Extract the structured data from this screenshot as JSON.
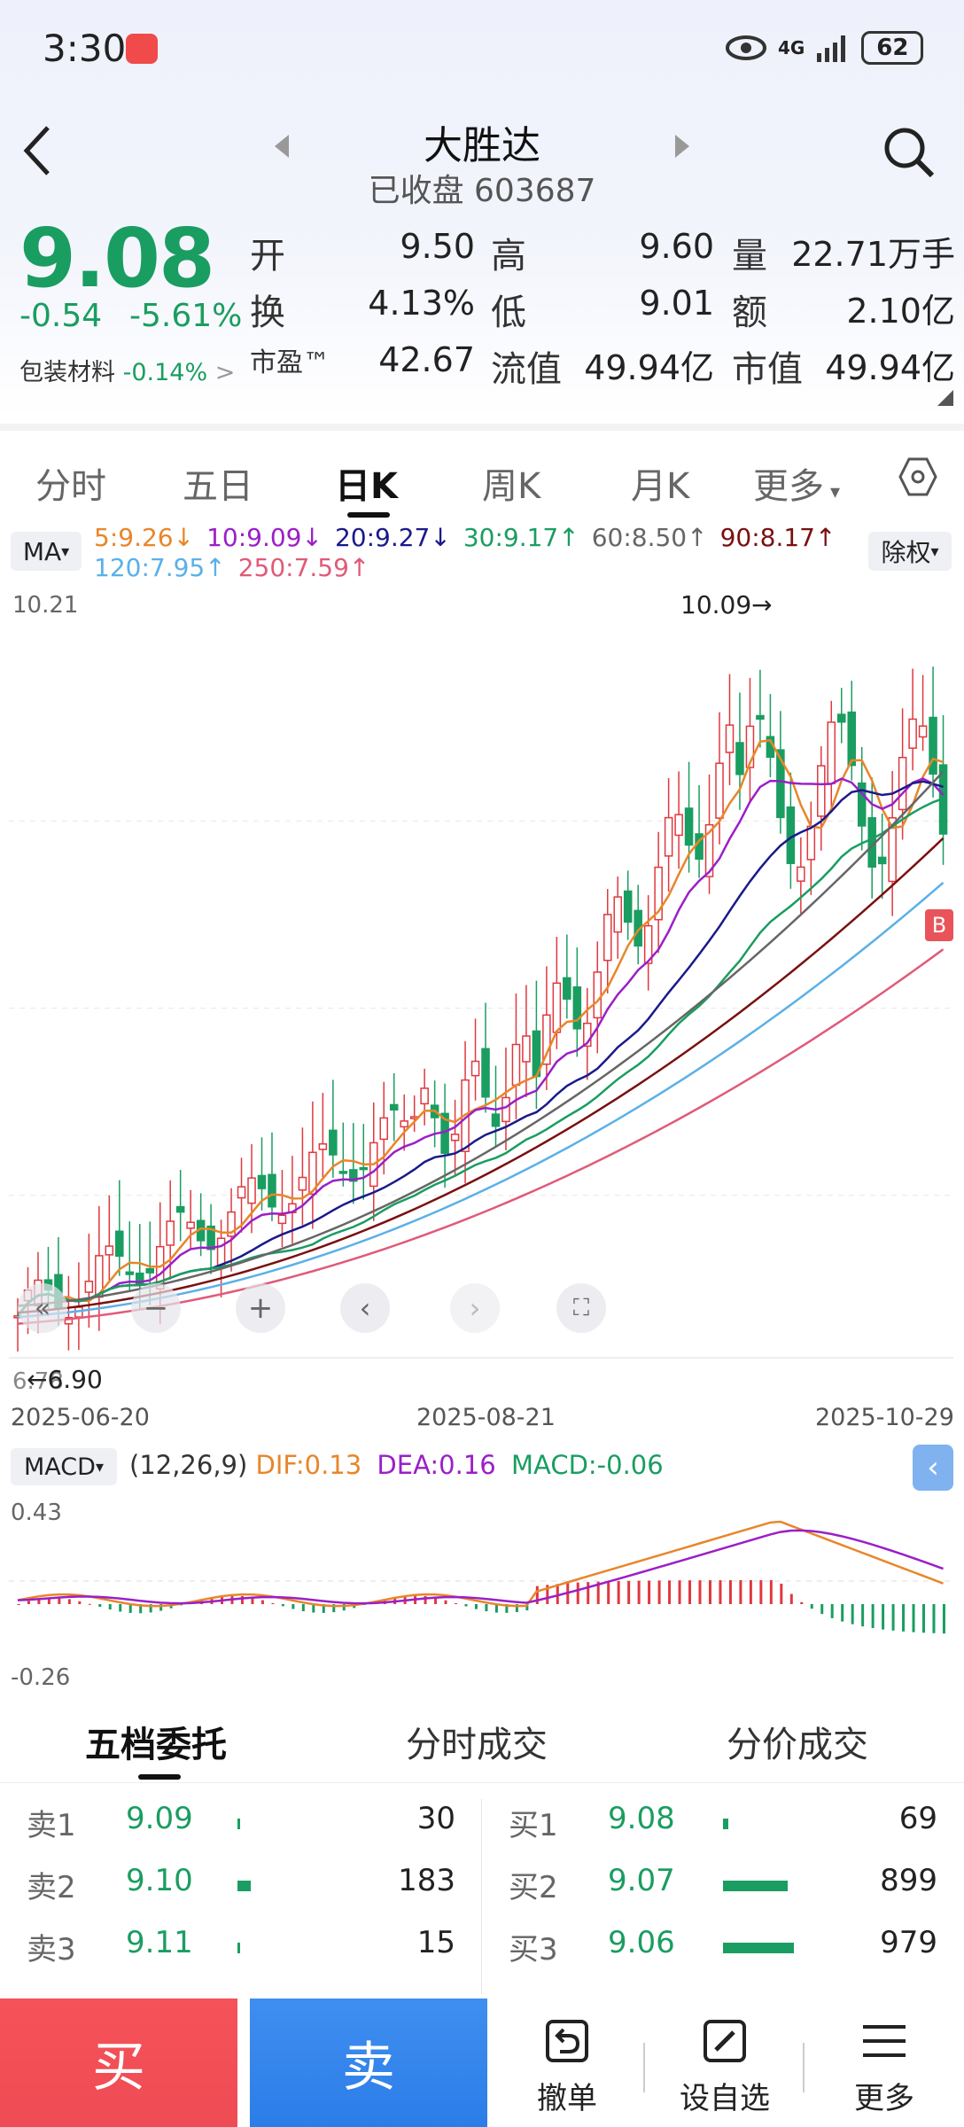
{
  "status": {
    "time": "3:30",
    "battery": "62",
    "network": "4G"
  },
  "header": {
    "title": "大胜达",
    "subtitle": "已收盘 603687"
  },
  "quote": {
    "price": "9.08",
    "change": "-0.54",
    "change_pct": "-5.61%",
    "sector": "包装材料",
    "sector_pct": "-0.14%",
    "rows": [
      [
        {
          "l": "开",
          "v": "9.50",
          "c": "red"
        },
        {
          "l": "高",
          "v": "9.60",
          "c": "red"
        },
        {
          "l": "量",
          "v": "22.71万手",
          "c": ""
        }
      ],
      [
        {
          "l": "换",
          "v": "4.13%",
          "c": ""
        },
        {
          "l": "低",
          "v": "9.01",
          "c": "green"
        },
        {
          "l": "额",
          "v": "2.10亿",
          "c": ""
        }
      ],
      [
        {
          "l": "市盈™",
          "v": "42.67",
          "c": ""
        },
        {
          "l": "流值",
          "v": "49.94亿",
          "c": ""
        },
        {
          "l": "市值",
          "v": "49.94亿",
          "c": ""
        }
      ]
    ]
  },
  "tabs": [
    "分时",
    "五日",
    "日K",
    "周K",
    "月K",
    "更多"
  ],
  "ma": {
    "selector": "MA",
    "items_row1": [
      {
        "t": "5:9.26↓",
        "color": "#e8862a"
      },
      {
        "t": "10:9.09↓",
        "color": "#9b1fc7"
      },
      {
        "t": "20:9.27↓",
        "color": "#1a1a8a"
      },
      {
        "t": "30:9.17↑",
        "color": "#1a9d61"
      },
      {
        "t": "60:8.50↑",
        "color": "#666666"
      },
      {
        "t": "90:8.17↑",
        "color": "#7a1010"
      }
    ],
    "items_row2": [
      {
        "t": "120:7.95↑",
        "color": "#5bb0e8"
      },
      {
        "t": "250:7.59↑",
        "color": "#e05a78"
      }
    ],
    "adjust": "除权"
  },
  "kchart": {
    "high_label": "10.21",
    "low_label": "6.78",
    "max_marker": "10.09→",
    "min_marker": "←6.90",
    "dates": [
      "2025-06-20",
      "2025-08-21",
      "2025-10-29"
    ],
    "b_marker": "B"
  },
  "macd": {
    "selector": "MACD",
    "params": "(12,26,9)",
    "dif": "DIF:0.13",
    "dea": "DEA:0.16",
    "macd": "MACD:-0.06",
    "high_label": "0.43",
    "low_label": "-0.26"
  },
  "orderbook_tabs": [
    "五档委托",
    "分时成交",
    "分价成交"
  ],
  "sell": [
    {
      "l": "卖1",
      "p": "9.09",
      "v": "30"
    },
    {
      "l": "卖2",
      "p": "9.10",
      "v": "183"
    },
    {
      "l": "卖3",
      "p": "9.11",
      "v": "15"
    }
  ],
  "buy": [
    {
      "l": "买1",
      "p": "9.08",
      "v": "69"
    },
    {
      "l": "买2",
      "p": "9.07",
      "v": "899"
    },
    {
      "l": "买3",
      "p": "9.06",
      "v": "979"
    }
  ],
  "bottom": {
    "buy": "买",
    "sell": "卖",
    "cancel": "撤单",
    "watch": "设自选",
    "more": "更多"
  },
  "colors": {
    "up": "#e0383e",
    "down": "#1a9d61",
    "accent": "#2b7de8"
  }
}
